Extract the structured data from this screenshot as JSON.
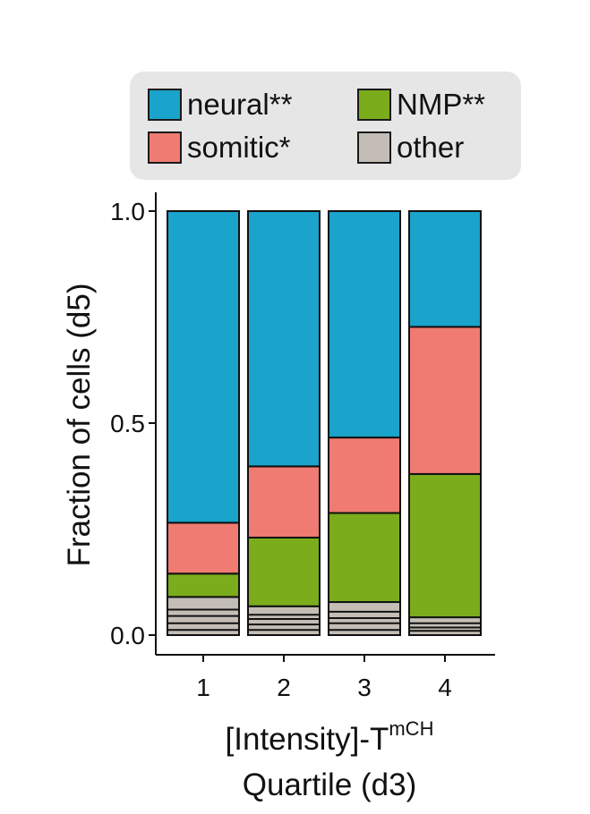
{
  "chart_data": {
    "type": "bar",
    "stacked": true,
    "categories": [
      "1",
      "2",
      "3",
      "4"
    ],
    "ylabel": "Fraction of cells (d5)",
    "xlabel_line1": "[Intensity]-T",
    "xlabel_superscript": "mCH",
    "xlabel_line2": "Quartile (d3)",
    "ylim": [
      0,
      1.0
    ],
    "yticks": [
      "0.0",
      "0.5",
      "1.0"
    ],
    "legend_position": "top",
    "series": [
      {
        "name": "other",
        "color": "#c3bdb5",
        "values": [
          0.09,
          0.068,
          0.078,
          0.042
        ]
      },
      {
        "name": "NMP**",
        "color": "#7aac1c",
        "values": [
          0.055,
          0.162,
          0.21,
          0.338
        ]
      },
      {
        "name": "somitic*",
        "color": "#ef7b72",
        "values": [
          0.12,
          0.168,
          0.178,
          0.347
        ]
      },
      {
        "name": "neural**",
        "color": "#1aa3cb",
        "values": [
          0.735,
          0.602,
          0.534,
          0.273
        ]
      }
    ],
    "other_inner_lines": [
      [
        0.012,
        0.028,
        0.045,
        0.06
      ],
      [
        0.012,
        0.025,
        0.038,
        0.048
      ],
      [
        0.012,
        0.028,
        0.04,
        0.055
      ],
      [
        0.01,
        0.018,
        0.028
      ]
    ]
  },
  "legend": [
    {
      "label": "neural**",
      "color": "#1aa3cb"
    },
    {
      "label": "NMP**",
      "color": "#7aac1c"
    },
    {
      "label": "somitic*",
      "color": "#ef7b72"
    },
    {
      "label": "other",
      "color": "#c3bdb5"
    }
  ]
}
